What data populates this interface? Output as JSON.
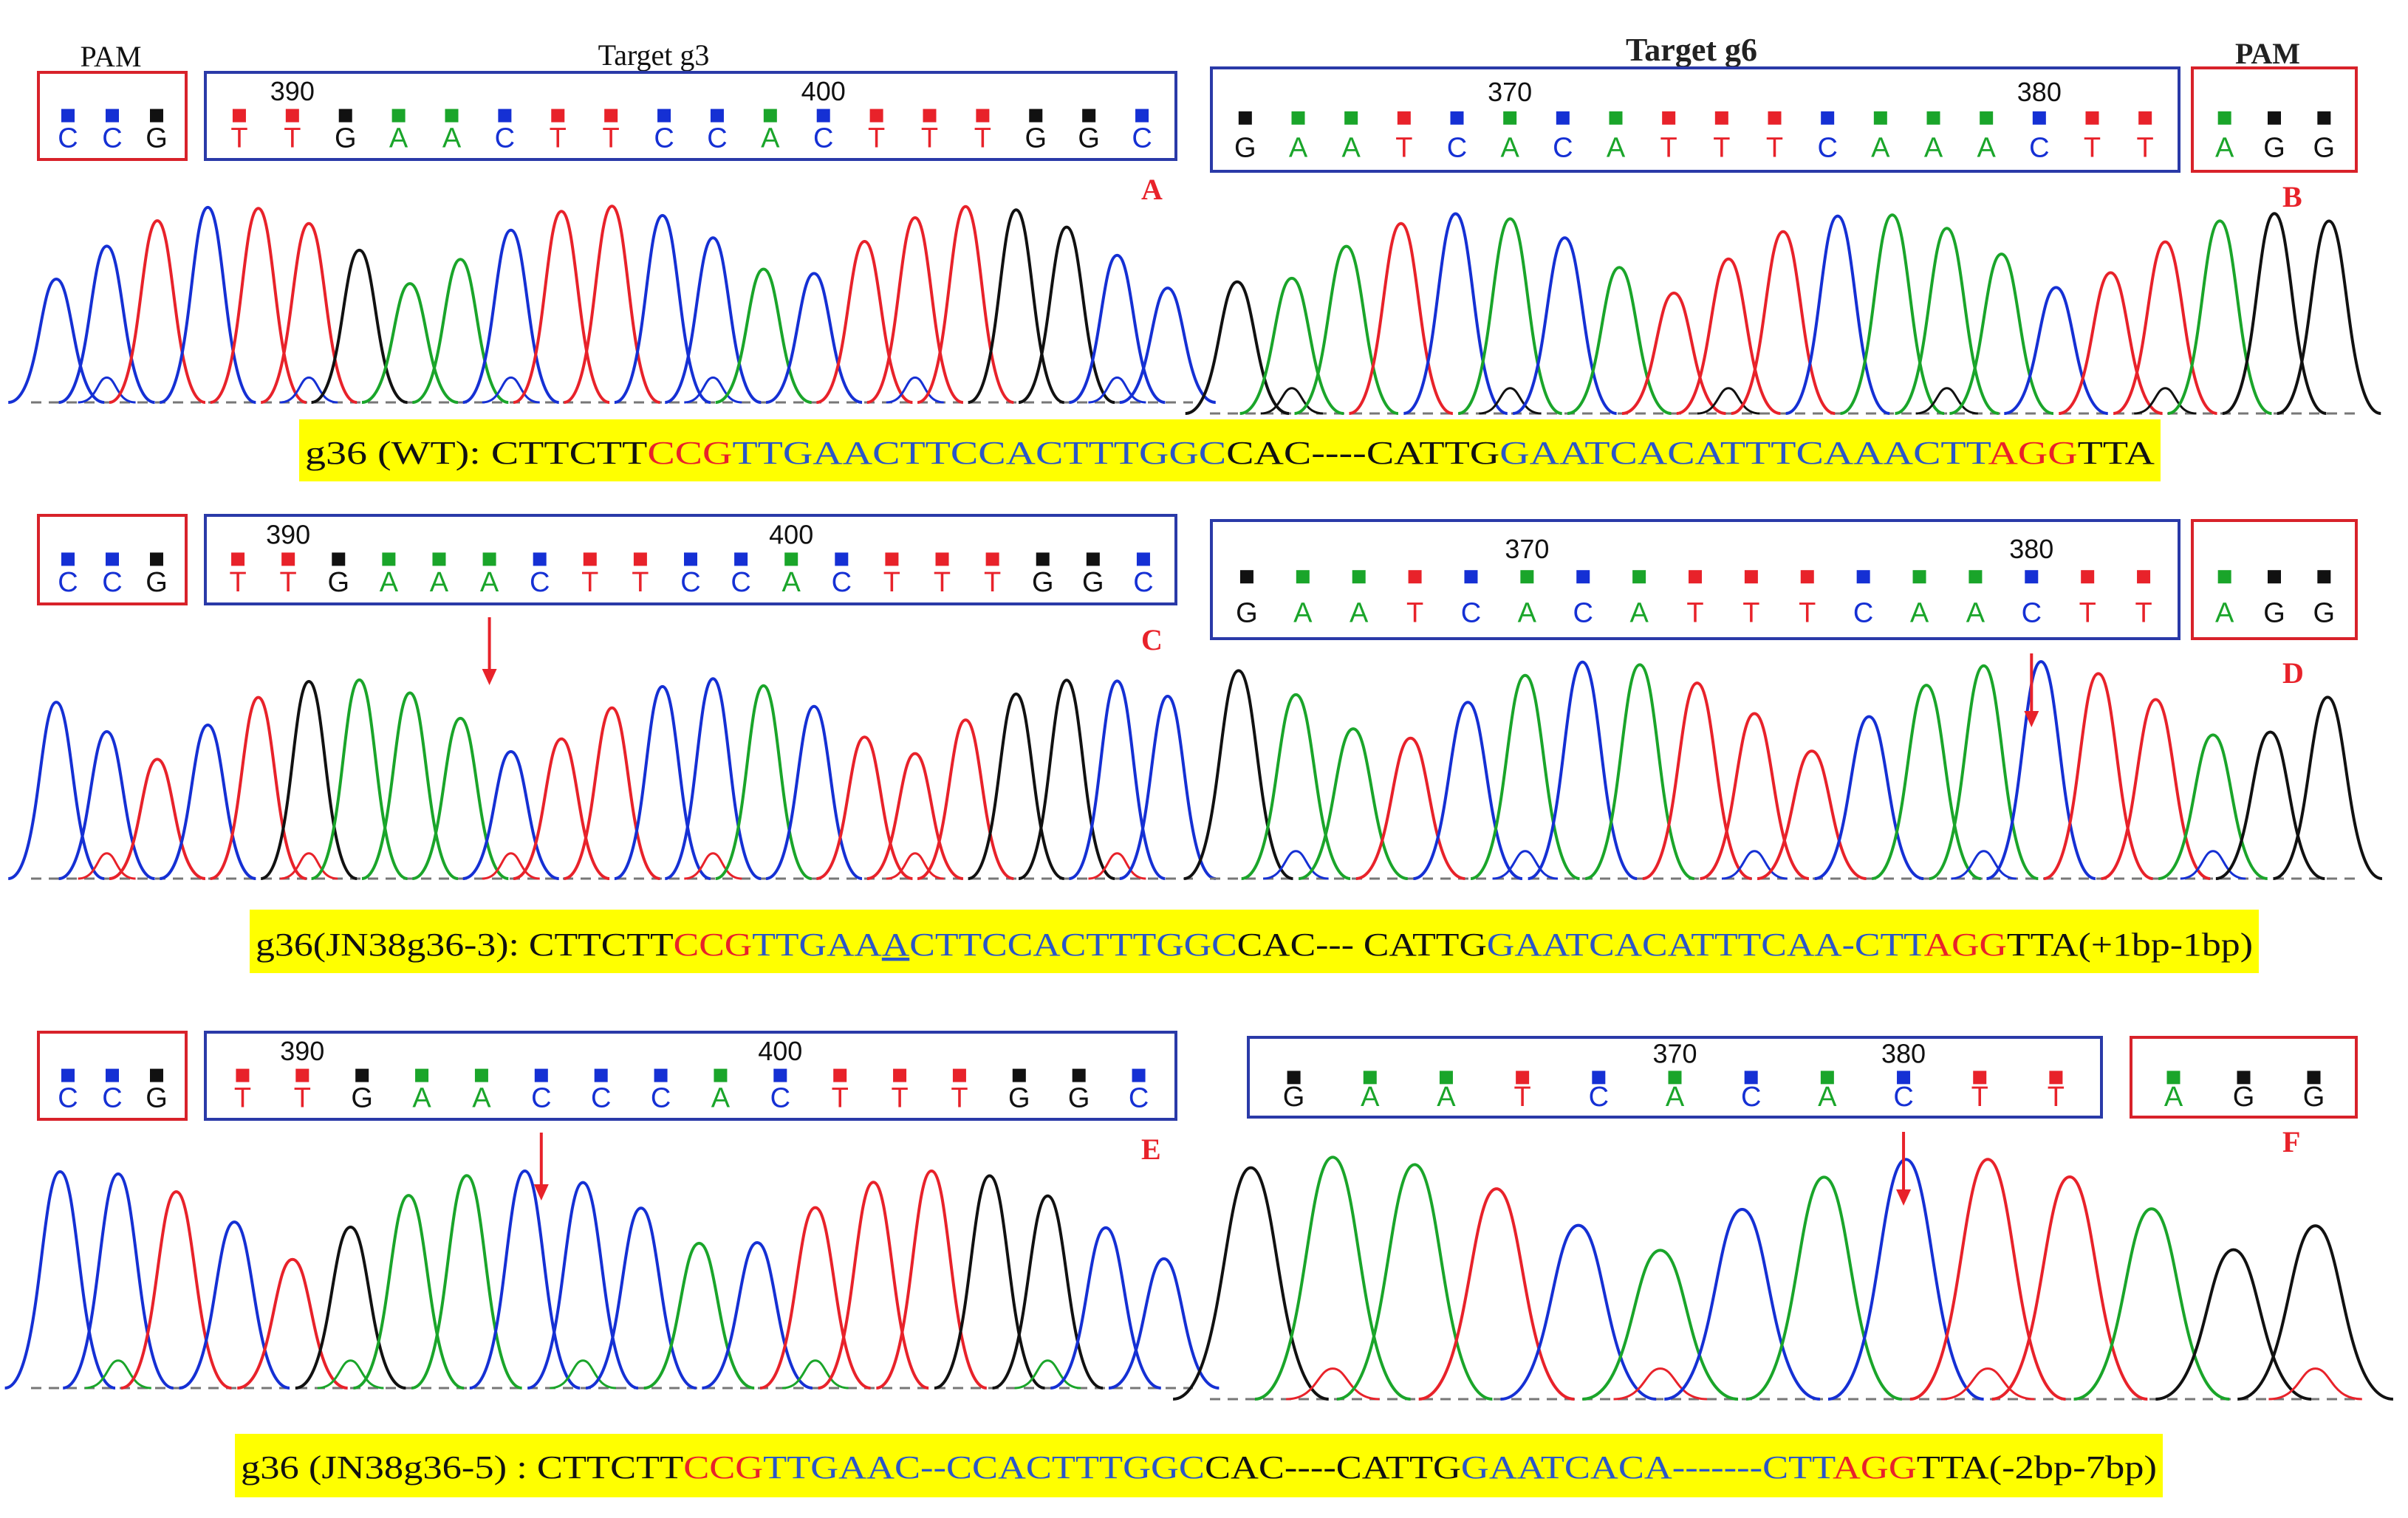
{
  "colors": {
    "A": "#1aa52a",
    "T": "#e8222a",
    "C": "#1530d4",
    "G": "#111111",
    "pam_box": "#d8222a",
    "target_box": "#2a3aa8",
    "panel_letter": "#e8222a",
    "seq_red": "#e8222a",
    "seq_blue": "#2a56c8",
    "highlight": "#ffff00"
  },
  "header": {
    "pam_left": "PAM",
    "target_g3": "Target g3",
    "target_g6": "Target g6",
    "pam_right": "PAM"
  },
  "rows": [
    {
      "left": {
        "letter": "A",
        "pam": [
          "C",
          "C",
          "G"
        ],
        "target": [
          "T",
          "T",
          "G",
          "A",
          "A",
          "C",
          "T",
          "T",
          "C",
          "C",
          "A",
          "C",
          "T",
          "T",
          "T",
          "G",
          "G",
          "C"
        ],
        "pos": [
          {
            "label": "390",
            "at": 1
          },
          {
            "label": "400",
            "at": 11
          }
        ],
        "arrow": null,
        "peaks": [
          "C",
          "C",
          "T",
          "C",
          "T",
          "T",
          "G",
          "A",
          "A",
          "C",
          "T",
          "T",
          "C",
          "C",
          "A",
          "C",
          "T",
          "T",
          "T",
          "G",
          "G",
          "C",
          "C"
        ]
      },
      "right": {
        "letter": "B",
        "target": [
          "G",
          "A",
          "A",
          "T",
          "C",
          "A",
          "C",
          "A",
          "T",
          "T",
          "T",
          "C",
          "A",
          "A",
          "A",
          "C",
          "T",
          "T"
        ],
        "pam": [
          "A",
          "G",
          "G"
        ],
        "pos": [
          {
            "label": "370",
            "at": 5
          },
          {
            "label": "380",
            "at": 15
          }
        ],
        "arrow": null,
        "peaks": [
          "G",
          "A",
          "A",
          "T",
          "C",
          "A",
          "C",
          "A",
          "T",
          "T",
          "T",
          "C",
          "A",
          "A",
          "A",
          "C",
          "T",
          "T",
          "A",
          "G",
          "G"
        ]
      }
    },
    {
      "left": {
        "letter": "C",
        "pam": [
          "C",
          "C",
          "G"
        ],
        "target": [
          "T",
          "T",
          "G",
          "A",
          "A",
          "A",
          "C",
          "T",
          "T",
          "C",
          "C",
          "A",
          "C",
          "T",
          "T",
          "T",
          "G",
          "G",
          "C"
        ],
        "pos": [
          {
            "label": "390",
            "at": 1
          },
          {
            "label": "400",
            "at": 11
          }
        ],
        "arrow": 5,
        "peaks": [
          "C",
          "C",
          "T",
          "C",
          "T",
          "G",
          "A",
          "A",
          "A",
          "C",
          "T",
          "T",
          "C",
          "C",
          "A",
          "C",
          "T",
          "T",
          "T",
          "G",
          "G",
          "C",
          "C"
        ]
      },
      "right": {
        "letter": "D",
        "target": [
          "G",
          "A",
          "A",
          "T",
          "C",
          "A",
          "C",
          "A",
          "T",
          "T",
          "T",
          "C",
          "A",
          "A",
          "C",
          "T",
          "T"
        ],
        "pam": [
          "A",
          "G",
          "G"
        ],
        "pos": [
          {
            "label": "370",
            "at": 5
          },
          {
            "label": "380",
            "at": 14
          }
        ],
        "arrow": 14,
        "peaks": [
          "G",
          "A",
          "A",
          "T",
          "C",
          "A",
          "C",
          "A",
          "T",
          "T",
          "T",
          "C",
          "A",
          "A",
          "C",
          "T",
          "T",
          "A",
          "G",
          "G"
        ]
      }
    },
    {
      "left": {
        "letter": "E",
        "pam": [
          "C",
          "C",
          "G"
        ],
        "target": [
          "T",
          "T",
          "G",
          "A",
          "A",
          "C",
          "C",
          "C",
          "A",
          "C",
          "T",
          "T",
          "T",
          "G",
          "G",
          "C"
        ],
        "pos": [
          {
            "label": "390",
            "at": 1
          },
          {
            "label": "400",
            "at": 9
          }
        ],
        "arrow": 5,
        "peaks": [
          "C",
          "C",
          "T",
          "C",
          "T",
          "G",
          "A",
          "A",
          "C",
          "C",
          "C",
          "A",
          "C",
          "T",
          "T",
          "T",
          "G",
          "G",
          "C",
          "C"
        ]
      },
      "right": {
        "letter": "F",
        "target": [
          "G",
          "A",
          "A",
          "T",
          "C",
          "A",
          "C",
          "A",
          "C",
          "T",
          "T"
        ],
        "pam": [
          "A",
          "G",
          "G"
        ],
        "pos": [
          {
            "label": "370",
            "at": 5
          },
          {
            "label": "380",
            "at": 8
          }
        ],
        "arrow": 8,
        "peaks": [
          "G",
          "A",
          "A",
          "T",
          "C",
          "A",
          "C",
          "A",
          "C",
          "T",
          "T",
          "A",
          "G",
          "G"
        ]
      }
    }
  ],
  "sequences": [
    {
      "segments": [
        {
          "text": "g36 (WT): ",
          "color": "k"
        },
        {
          "text": "CTTCTT",
          "color": "k"
        },
        {
          "text": "CCG",
          "color": "r"
        },
        {
          "text": "TTGAACTTCCACTTTGGC",
          "color": "b"
        },
        {
          "text": "CAC----CATTG",
          "color": "k"
        },
        {
          "text": "GAATCACATTTCAAACTT",
          "color": "b"
        },
        {
          "text": "AGG",
          "color": "r"
        },
        {
          "text": "TTA",
          "color": "k"
        }
      ]
    },
    {
      "segments": [
        {
          "text": "g36(JN38g36-3): ",
          "color": "k"
        },
        {
          "text": "CTTCTT",
          "color": "k"
        },
        {
          "text": "CCG",
          "color": "r"
        },
        {
          "text": "TTGAA",
          "color": "b"
        },
        {
          "text": "A",
          "color": "b",
          "underline": true
        },
        {
          "text": "CTTCCACTTTGGC",
          "color": "b"
        },
        {
          "text": "CAC--- CATTG",
          "color": "k"
        },
        {
          "text": "GAATCACATTTCAA-CTT",
          "color": "b"
        },
        {
          "text": "AGG",
          "color": "r"
        },
        {
          "text": "TTA(+1bp-1bp)",
          "color": "k"
        }
      ]
    },
    {
      "segments": [
        {
          "text": "g36 (JN38g36-5) : ",
          "color": "k"
        },
        {
          "text": "CTTCTT",
          "color": "k"
        },
        {
          "text": "CCG",
          "color": "r"
        },
        {
          "text": "TTGAAC--CCACTTTGGC",
          "color": "b"
        },
        {
          "text": "CAC----CATTG",
          "color": "k"
        },
        {
          "text": "GAATCACA-------CTT",
          "color": "b"
        },
        {
          "text": "AGG",
          "color": "r"
        },
        {
          "text": "TTA(-2bp-7bp)",
          "color": "k"
        }
      ]
    }
  ]
}
